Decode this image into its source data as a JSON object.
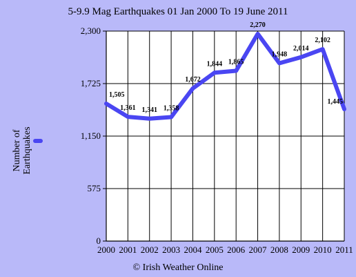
{
  "chart_data": {
    "type": "line",
    "title": "5-9.9 Mag Earthquakes 01 Jan  2000 To 19 June 2011",
    "ylabel_lines": [
      "Number of",
      "Earthquakes"
    ],
    "xlabel": "",
    "categories": [
      "2000",
      "2001",
      "2002",
      "2003",
      "2004",
      "2005",
      "2006",
      "2007",
      "2008",
      "2009",
      "2010",
      "2011"
    ],
    "series": [
      {
        "values": [
          1505,
          1361,
          1341,
          1358,
          1672,
          1844,
          1865,
          2270,
          1948,
          2014,
          2102,
          1445
        ]
      }
    ],
    "data_labels": [
      "1,505",
      "1,361",
      "1,341",
      "1,358",
      "1,672",
      "1,844",
      "1,865",
      "2,270",
      "1,948",
      "2,014",
      "2,102",
      "1,445"
    ],
    "ylim": [
      0,
      2300
    ],
    "yticks": [
      0,
      575,
      1150,
      1725,
      2300
    ],
    "ytick_labels": [
      "0",
      "575",
      "1,150",
      "1,725",
      "2,300"
    ],
    "grid": true,
    "legend_position": "left",
    "line_color": "#4a46f2",
    "background_color": "#b9b9f9"
  },
  "footer": {
    "credit": "© Irish Weather Online"
  }
}
